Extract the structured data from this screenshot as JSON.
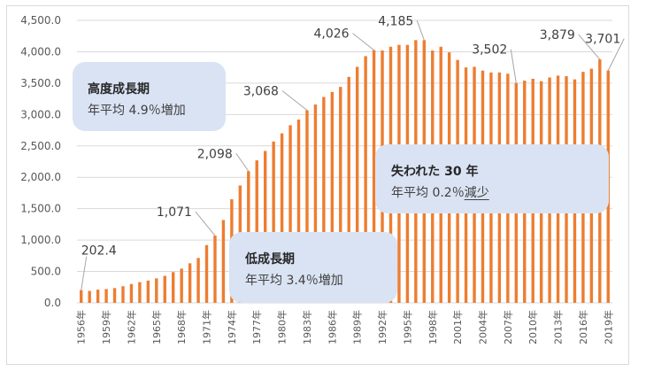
{
  "chart_data": {
    "type": "bar",
    "title": "",
    "xlabel": "",
    "ylabel": "",
    "ylim": [
      0,
      4500
    ],
    "yticks": [
      "0.0",
      "500.0",
      "1,000.0",
      "1,500.0",
      "2,000.0",
      "2,500.0",
      "3,000.0",
      "3,500.0",
      "4,000.0",
      "4,500.0"
    ],
    "ytick_values": [
      0,
      500,
      1000,
      1500,
      2000,
      2500,
      3000,
      3500,
      4000,
      4500
    ],
    "grid": true,
    "color": "#ed7d31",
    "categories": [
      "1956年",
      "1957年",
      "1958年",
      "1959年",
      "1960年",
      "1961年",
      "1962年",
      "1963年",
      "1964年",
      "1965年",
      "1966年",
      "1967年",
      "1968年",
      "1969年",
      "1970年",
      "1971年",
      "1972年",
      "1973年",
      "1974年",
      "1975年",
      "1976年",
      "1977年",
      "1978年",
      "1979年",
      "1980年",
      "1981年",
      "1982年",
      "1983年",
      "1984年",
      "1985年",
      "1986年",
      "1987年",
      "1988年",
      "1989年",
      "1990年",
      "1991年",
      "1992年",
      "1993年",
      "1994年",
      "1995年",
      "1996年",
      "1997年",
      "1998年",
      "1999年",
      "2000年",
      "2001年",
      "2002年",
      "2003年",
      "2004年",
      "2005年",
      "2006年",
      "2007年",
      "2008年",
      "2009年",
      "2010年",
      "2011年",
      "2012年",
      "2013年",
      "2014年",
      "2015年",
      "2016年",
      "2017年",
      "2018年",
      "2019年"
    ],
    "shown_xticks": [
      "1956年",
      "1959年",
      "1962年",
      "1965年",
      "1968年",
      "1971年",
      "1974年",
      "1977年",
      "1980年",
      "1983年",
      "1986年",
      "1989年",
      "1992年",
      "1995年",
      "1998年",
      "2001年",
      "2004年",
      "2007年",
      "2010年",
      "2013年",
      "2016年",
      "2019年"
    ],
    "values": [
      202.4,
      190,
      210,
      220,
      235,
      265,
      300,
      330,
      355,
      390,
      430,
      490,
      545,
      630,
      715,
      920,
      1071,
      1320,
      1650,
      1870,
      2098,
      2270,
      2420,
      2570,
      2700,
      2830,
      2920,
      3068,
      3160,
      3280,
      3360,
      3440,
      3600,
      3760,
      3930,
      4026,
      4020,
      4080,
      4110,
      4110,
      4185,
      4185,
      4020,
      4080,
      3990,
      3870,
      3750,
      3760,
      3700,
      3670,
      3670,
      3650,
      3502,
      3540,
      3570,
      3530,
      3590,
      3620,
      3610,
      3560,
      3680,
      3730,
      3879,
      3701
    ],
    "data_labels": [
      {
        "category": "1956年",
        "text": "202.4"
      },
      {
        "category": "1972年",
        "text": "1,071"
      },
      {
        "category": "1976年",
        "text": "2,098"
      },
      {
        "category": "1983年",
        "text": "3,068"
      },
      {
        "category": "1991年",
        "text": "4,026"
      },
      {
        "category": "1997年",
        "text": "4,185"
      },
      {
        "category": "2008年",
        "text": "3,502"
      },
      {
        "category": "2018年",
        "text": "3,879"
      },
      {
        "category": "2019年",
        "text": "3,701"
      }
    ],
    "annotations": [
      {
        "title": "高度成長期",
        "prefix": "年平均 4.9％",
        "suffix": "増加"
      },
      {
        "title": "低成長期",
        "prefix": "年平均 3.4％",
        "suffix": "増加"
      },
      {
        "title": "失われた 30 年",
        "prefix": "年平均 0.2％",
        "suffix": "減少"
      }
    ]
  }
}
